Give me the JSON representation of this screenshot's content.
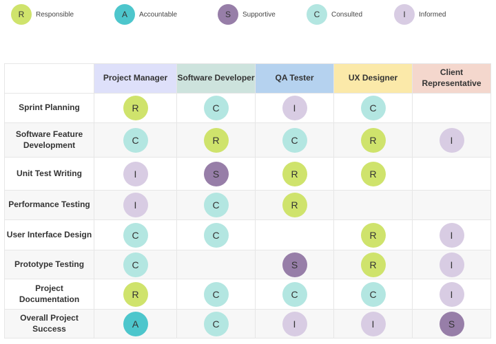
{
  "legend": [
    {
      "code": "R",
      "label": "Responsible",
      "color": "#cfe36c"
    },
    {
      "code": "A",
      "label": "Accountable",
      "color": "#4dc6cc"
    },
    {
      "code": "S",
      "label": "Supportive",
      "color": "#977ea8"
    },
    {
      "code": "C",
      "label": "Consulted",
      "color": "#b3e6e1"
    },
    {
      "code": "I",
      "label": "Informed",
      "color": "#d8cce3"
    }
  ],
  "roles": [
    {
      "label": "Project Manager",
      "color": "#dee0fa"
    },
    {
      "label": "Software Developer",
      "color": "#cde3dd"
    },
    {
      "label": "QA Tester",
      "color": "#b5d2ef"
    },
    {
      "label": "UX Designer",
      "color": "#fbe9a9"
    },
    {
      "label": "Client Representative",
      "color": "#f4d7cd"
    }
  ],
  "tasks": [
    {
      "label": "Sprint Planning",
      "assignments": [
        "R",
        "C",
        "I",
        "C",
        ""
      ]
    },
    {
      "label": "Software Feature Development",
      "assignments": [
        "C",
        "R",
        "C",
        "R",
        "I"
      ]
    },
    {
      "label": "Unit Test Writing",
      "assignments": [
        "I",
        "S",
        "R",
        "R",
        ""
      ]
    },
    {
      "label": "Performance Testing",
      "assignments": [
        "I",
        "C",
        "R",
        "",
        ""
      ]
    },
    {
      "label": "User Interface Design",
      "assignments": [
        "C",
        "C",
        "",
        "R",
        "I"
      ]
    },
    {
      "label": "Prototype Testing",
      "assignments": [
        "C",
        "",
        "S",
        "R",
        "I"
      ]
    },
    {
      "label": "Project Documentation",
      "assignments": [
        "R",
        "C",
        "C",
        "C",
        "I"
      ]
    },
    {
      "label": "Overall Project Success",
      "assignments": [
        "A",
        "C",
        "I",
        "I",
        "S"
      ]
    }
  ]
}
